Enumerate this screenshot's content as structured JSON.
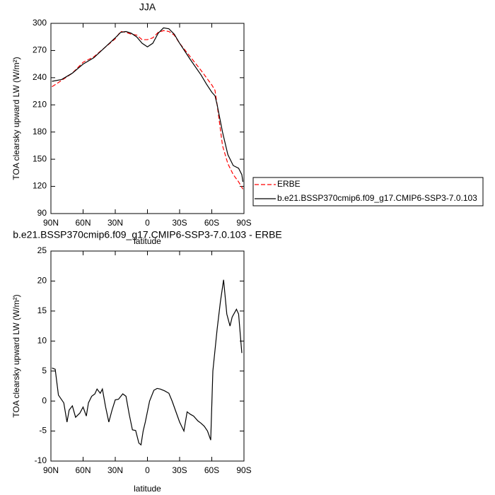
{
  "chart_data": [
    {
      "type": "line",
      "title": "JJA",
      "xlabel": "latitude",
      "ylabel": "TOA clearsky upward LW (W/m²)",
      "xlim": [
        90,
        -90
      ],
      "ylim": [
        90,
        300
      ],
      "xticks": [
        {
          "value": 90,
          "label": "90N"
        },
        {
          "value": 60,
          "label": "60N"
        },
        {
          "value": 30,
          "label": "30N"
        },
        0,
        {
          "value": -30,
          "label": "30S"
        },
        {
          "value": -60,
          "label": "60S"
        },
        {
          "value": -90,
          "label": "90S"
        }
      ],
      "yticks": [
        90,
        120,
        150,
        180,
        210,
        240,
        270,
        300
      ],
      "legend": "right",
      "series": [
        {
          "name": "ERBE",
          "color": "#ff0000",
          "dash": true,
          "x": [
            89,
            80,
            70,
            60,
            50,
            40,
            30,
            25,
            20,
            15,
            10,
            5,
            0,
            -5,
            -10,
            -15,
            -20,
            -25,
            -30,
            -40,
            -50,
            -55,
            -60,
            -63,
            -65,
            -70,
            -75,
            -80,
            -85,
            -89
          ],
          "values": [
            230,
            237,
            245,
            257,
            263,
            273,
            283,
            291,
            290,
            288,
            287,
            282,
            282,
            284,
            290,
            292,
            291,
            287,
            278,
            263,
            248,
            240,
            232,
            226,
            210,
            165,
            145,
            133,
            125,
            117
          ]
        },
        {
          "name": "b.e21.BSSP370cmip6.f09_g17.CMIP6-SSP3-7.0.103",
          "color": "#000000",
          "dash": false,
          "x": [
            89,
            80,
            70,
            60,
            50,
            40,
            30,
            25,
            20,
            15,
            10,
            5,
            0,
            -5,
            -10,
            -15,
            -20,
            -25,
            -30,
            -40,
            -50,
            -55,
            -60,
            -63,
            -65,
            -70,
            -75,
            -80,
            -85,
            -88,
            -89
          ],
          "values": [
            236,
            238,
            245,
            255,
            262,
            273,
            284,
            290,
            291,
            289,
            285,
            278,
            274,
            278,
            289,
            295,
            294,
            288,
            278,
            260,
            243,
            233,
            224,
            220,
            210,
            180,
            155,
            143,
            140,
            133,
            125
          ]
        }
      ]
    },
    {
      "type": "line",
      "title": "b.e21.BSSP370cmip6.f09_g17.CMIP6-SSP3-7.0.103 - ERBE",
      "xlabel": "latitude",
      "ylabel": "TOA clearsky upward LW (W/m²)",
      "xlim": [
        90,
        -90
      ],
      "ylim": [
        -10,
        25
      ],
      "xticks": [
        {
          "value": 90,
          "label": "90N"
        },
        {
          "value": 60,
          "label": "60N"
        },
        {
          "value": 30,
          "label": "30N"
        },
        0,
        {
          "value": -30,
          "label": "30S"
        },
        {
          "value": -60,
          "label": "60S"
        },
        {
          "value": -90,
          "label": "90S"
        }
      ],
      "yticks": [
        -10,
        -5,
        0,
        5,
        10,
        15,
        20,
        25
      ],
      "series": [
        {
          "color": "#000000",
          "x": [
            89,
            86,
            83,
            78,
            75,
            73,
            70,
            67,
            63,
            60,
            57,
            55,
            52,
            49,
            47,
            44,
            42,
            39,
            36,
            33,
            30,
            27,
            23,
            20,
            17,
            14,
            11,
            8,
            6,
            4,
            2,
            -2,
            -6,
            -9,
            -12,
            -16,
            -20,
            -23,
            -27,
            -30,
            -34,
            -37,
            -40,
            -43,
            -47,
            -50,
            -53,
            -56,
            -59,
            -61,
            -65,
            -68,
            -71,
            -74,
            -77,
            -79,
            -83,
            -85,
            -88
          ],
          "values": [
            5.5,
            5.3,
            1,
            -0.3,
            -3.5,
            -1.5,
            -0.8,
            -2.7,
            -2,
            -1,
            -2.5,
            -0.3,
            0.8,
            1.2,
            2,
            1.3,
            2,
            -1,
            -3.5,
            -1.5,
            0.2,
            0.3,
            1.2,
            0.8,
            -2.2,
            -4.8,
            -4.9,
            -7,
            -7.3,
            -5,
            -3.5,
            0,
            1.8,
            2.1,
            2,
            1.7,
            1.3,
            0,
            -2,
            -3.5,
            -5,
            -1.8,
            -2.2,
            -2.5,
            -3.3,
            -3.7,
            -4.2,
            -5,
            -6.5,
            5,
            12,
            16.5,
            20.2,
            14.5,
            12.5,
            14,
            15.3,
            14.5,
            8
          ]
        }
      ]
    }
  ]
}
